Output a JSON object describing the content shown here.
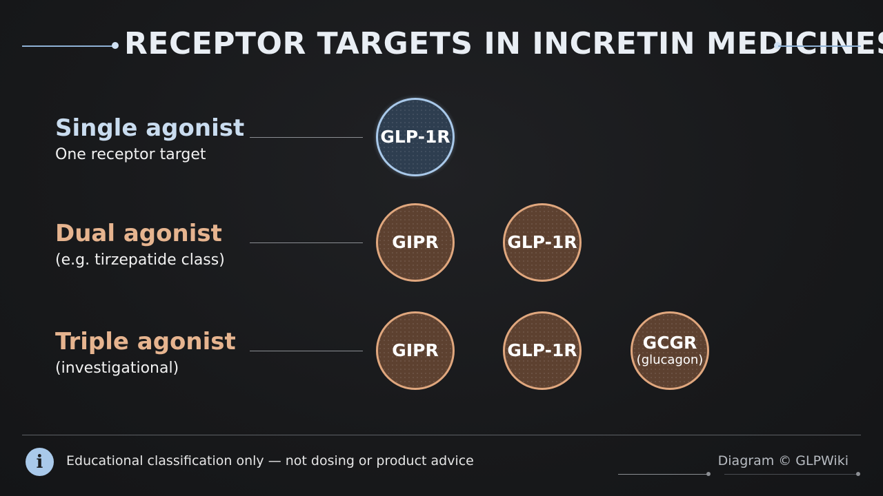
{
  "title": "RECEPTOR TARGETS IN INCRETIN MEDICINES",
  "colors": {
    "title": "#e9eef4",
    "single_heading": "#c9dcef",
    "multi_heading": "#e6b48f",
    "blue_node_fill": "#2e3e50",
    "blue_node_border": "#a9c9ea",
    "brown_node_fill": "#5d4130",
    "brown_node_border": "#e0a77e"
  },
  "rows": [
    {
      "heading": "Single agonist",
      "subtitle": "One receptor target",
      "nodes": [
        {
          "label": "GLP-1R",
          "sublabel": "",
          "style": "blue"
        }
      ]
    },
    {
      "heading": "Dual agonist",
      "subtitle": "(e.g. tirzepatide class)",
      "nodes": [
        {
          "label": "GIPR",
          "sublabel": "",
          "style": "brown"
        },
        {
          "label": "GLP-1R",
          "sublabel": "",
          "style": "brown"
        }
      ]
    },
    {
      "heading": "Triple agonist",
      "subtitle": "(investigational)",
      "nodes": [
        {
          "label": "GIPR",
          "sublabel": "",
          "style": "brown"
        },
        {
          "label": "GLP-1R",
          "sublabel": "",
          "style": "brown"
        },
        {
          "label": "GCGR",
          "sublabel": "(glucagon)",
          "style": "brown"
        }
      ]
    }
  ],
  "footer": {
    "info_icon": "info-icon",
    "note": "Educational classification only — not dosing or product advice",
    "credit": "Diagram © GLPWiki"
  }
}
